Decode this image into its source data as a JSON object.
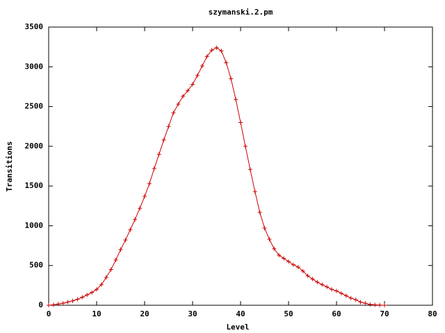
{
  "chart_data": {
    "type": "line",
    "title": "szymanski.2.pm",
    "xlabel": "Level",
    "ylabel": "Transitions",
    "x": [
      0,
      1,
      2,
      3,
      4,
      5,
      6,
      7,
      8,
      9,
      10,
      11,
      12,
      13,
      14,
      15,
      16,
      17,
      18,
      19,
      20,
      21,
      22,
      23,
      24,
      25,
      26,
      27,
      28,
      29,
      30,
      31,
      32,
      33,
      34,
      35,
      36,
      37,
      38,
      39,
      40,
      41,
      42,
      43,
      44,
      45,
      46,
      47,
      48,
      49,
      50,
      51,
      52,
      53,
      54,
      55,
      56,
      57,
      58,
      59,
      60,
      61,
      62,
      63,
      64,
      65,
      66,
      67,
      68,
      69,
      70
    ],
    "values": [
      0,
      5,
      15,
      25,
      40,
      55,
      75,
      100,
      130,
      160,
      200,
      260,
      350,
      450,
      570,
      700,
      820,
      950,
      1080,
      1220,
      1370,
      1530,
      1720,
      1900,
      2080,
      2250,
      2420,
      2530,
      2630,
      2700,
      2780,
      2890,
      3010,
      3130,
      3210,
      3240,
      3200,
      3050,
      2850,
      2590,
      2300,
      2000,
      1710,
      1430,
      1170,
      970,
      830,
      710,
      630,
      590,
      550,
      510,
      480,
      430,
      370,
      330,
      290,
      260,
      230,
      200,
      180,
      150,
      120,
      90,
      70,
      40,
      25,
      10,
      5,
      2,
      0
    ],
    "color": "#cc0000",
    "xlim": [
      0,
      80
    ],
    "xticks": [
      0,
      10,
      20,
      30,
      40,
      50,
      60,
      70,
      80
    ],
    "ylim": [
      0,
      3500
    ],
    "yticks": [
      0,
      500,
      1000,
      1500,
      2000,
      2500,
      3000,
      3500
    ],
    "grid": false
  }
}
